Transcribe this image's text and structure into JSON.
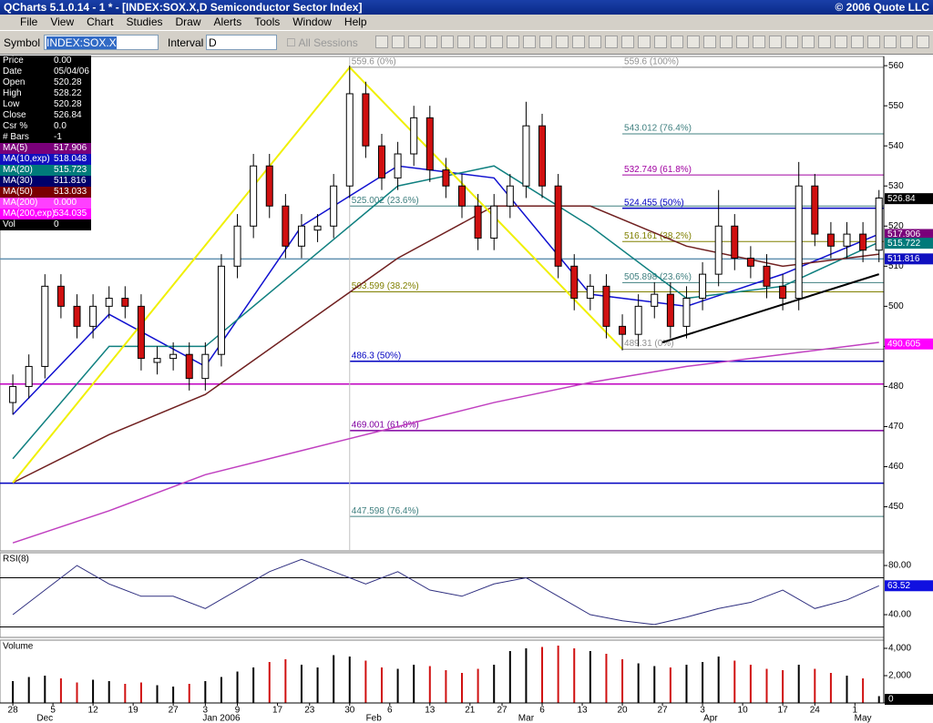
{
  "window": {
    "title": "QCharts 5.1.0.14 - 1 * - [INDEX:SOX.X,D Semiconductor Sector Index]",
    "copyright": "© 2006 Quote LLC"
  },
  "menu": [
    "File",
    "View",
    "Chart",
    "Studies",
    "Draw",
    "Alerts",
    "Tools",
    "Window",
    "Help"
  ],
  "toolbar": {
    "symbol_label": "Symbol",
    "symbol": "INDEX:SOX.X",
    "interval_label": "Interval",
    "interval": "D",
    "sessions": "All Sessions"
  },
  "info_panel": [
    {
      "label": "Price",
      "value": "0.00",
      "bg": "#000000"
    },
    {
      "label": "Date",
      "value": "05/04/06",
      "bg": "#000000"
    },
    {
      "label": "Open",
      "value": "520.28",
      "bg": "#000000"
    },
    {
      "label": "High",
      "value": "528.22",
      "bg": "#000000"
    },
    {
      "label": "Low",
      "value": "520.28",
      "bg": "#000000"
    },
    {
      "label": "Close",
      "value": "526.84",
      "bg": "#000000"
    },
    {
      "label": "Csr %",
      "value": "0.0",
      "bg": "#000000"
    },
    {
      "label": "# Bars",
      "value": "-1",
      "bg": "#000000"
    },
    {
      "label": "MA(5)",
      "value": "517.906",
      "bg": "#7a007a"
    },
    {
      "label": "MA(10,exp)",
      "value": "518.048",
      "bg": "#1010c0"
    },
    {
      "label": "MA(20)",
      "value": "515.723",
      "bg": "#007a7a"
    },
    {
      "label": "MA(30)",
      "value": "511.816",
      "bg": "#00006a"
    },
    {
      "label": "MA(50)",
      "value": "513.033",
      "bg": "#7a0000"
    },
    {
      "label": "MA(200)",
      "value": "0.000",
      "bg": "#ff40ff"
    },
    {
      "label": "MA(200,exp)",
      "value": "534.035",
      "bg": "#ff00ff"
    },
    {
      "label": "Vol",
      "value": "0",
      "bg": "#000000"
    }
  ],
  "chart": {
    "type": "candlestick",
    "xlim": [
      -1.6,
      108.6
    ],
    "ylim": [
      439,
      562.3
    ],
    "yticks": [
      450,
      460,
      470,
      480,
      490,
      500,
      510,
      520,
      530,
      540,
      550,
      560
    ],
    "xticks": [
      {
        "value": 0,
        "label": "28"
      },
      {
        "value": 5,
        "label": "5"
      },
      {
        "value": 10,
        "label": "12"
      },
      {
        "value": 15,
        "label": "19"
      },
      {
        "value": 20,
        "label": "27"
      },
      {
        "value": 24,
        "label": "3"
      },
      {
        "value": 28,
        "label": "9"
      },
      {
        "value": 33,
        "label": "17"
      },
      {
        "value": 37,
        "label": "23"
      },
      {
        "value": 42,
        "label": "30"
      },
      {
        "value": 47,
        "label": "6"
      },
      {
        "value": 52,
        "label": "13"
      },
      {
        "value": 57,
        "label": "21"
      },
      {
        "value": 61,
        "label": "27"
      },
      {
        "value": 66,
        "label": "6"
      },
      {
        "value": 71,
        "label": "13"
      },
      {
        "value": 76,
        "label": "20"
      },
      {
        "value": 81,
        "label": "27"
      },
      {
        "value": 86,
        "label": "3"
      },
      {
        "value": 91,
        "label": "10"
      },
      {
        "value": 96,
        "label": "17"
      },
      {
        "value": 100,
        "label": "24"
      },
      {
        "value": 105,
        "label": "1"
      }
    ],
    "months": [
      {
        "value": 4,
        "label": "Dec"
      },
      {
        "value": 26,
        "label": "Jan 2006"
      },
      {
        "value": 45,
        "label": "Feb"
      },
      {
        "value": 64,
        "label": "Mar"
      },
      {
        "value": 87,
        "label": "Apr"
      },
      {
        "value": 106,
        "label": "May"
      }
    ],
    "up_color": "#ffffff",
    "down_color": "#d01010",
    "candle_days": [
      0,
      2,
      4,
      6,
      8,
      10,
      12,
      14,
      16,
      18,
      20,
      22,
      24,
      26,
      28,
      30,
      32,
      34,
      36,
      38,
      40,
      42,
      44,
      46,
      48,
      50,
      52,
      54,
      56,
      58,
      60,
      62,
      64,
      66,
      68,
      70,
      72,
      74,
      76,
      78,
      80,
      82,
      84,
      86,
      88,
      90,
      92,
      94,
      96,
      98,
      100,
      102,
      104,
      106,
      108
    ],
    "candles": [
      [
        476,
        483,
        473,
        480
      ],
      [
        480,
        488,
        477,
        485
      ],
      [
        485,
        508,
        482,
        505
      ],
      [
        505,
        508,
        497,
        500
      ],
      [
        500,
        503,
        492,
        495
      ],
      [
        495,
        503,
        492,
        500
      ],
      [
        500,
        505,
        497,
        502
      ],
      [
        502,
        505,
        497,
        500
      ],
      [
        500,
        503,
        484,
        487
      ],
      [
        486,
        490,
        483,
        487
      ],
      [
        487,
        491,
        484,
        488
      ],
      [
        488,
        491,
        479,
        482
      ],
      [
        482,
        491,
        479,
        488
      ],
      [
        488,
        513,
        485,
        510
      ],
      [
        510,
        523,
        507,
        520
      ],
      [
        520,
        538,
        517,
        535
      ],
      [
        535,
        538,
        522,
        525
      ],
      [
        525,
        528,
        512,
        515
      ],
      [
        515,
        523,
        512,
        520
      ],
      [
        519,
        523,
        516,
        520
      ],
      [
        520,
        533,
        517,
        530
      ],
      [
        530,
        560,
        527,
        553
      ],
      [
        553,
        556,
        537,
        540
      ],
      [
        540,
        543,
        529,
        532
      ],
      [
        532,
        541,
        529,
        538
      ],
      [
        538,
        550,
        535,
        547
      ],
      [
        547,
        550,
        531,
        534
      ],
      [
        534,
        537,
        527,
        530
      ],
      [
        530,
        533,
        522,
        525
      ],
      [
        525,
        528,
        514,
        517
      ],
      [
        517,
        528,
        514,
        525
      ],
      [
        525,
        533,
        522,
        530
      ],
      [
        530,
        551,
        527,
        545
      ],
      [
        545,
        548,
        527,
        530
      ],
      [
        530,
        533,
        507,
        510
      ],
      [
        510,
        513,
        499,
        502
      ],
      [
        502,
        508,
        499,
        505
      ],
      [
        505,
        508,
        492,
        495
      ],
      [
        495,
        498,
        489,
        493
      ],
      [
        493,
        503,
        490,
        500
      ],
      [
        500,
        506,
        497,
        503
      ],
      [
        503,
        506,
        492,
        495
      ],
      [
        495,
        505,
        492,
        502
      ],
      [
        502,
        511,
        499,
        508
      ],
      [
        508,
        529,
        505,
        520
      ],
      [
        520,
        523,
        509,
        512
      ],
      [
        512,
        515,
        507,
        510
      ],
      [
        510,
        513,
        502,
        505
      ],
      [
        505,
        508,
        499,
        502
      ],
      [
        502,
        536,
        499,
        530
      ],
      [
        530,
        533,
        515,
        518
      ],
      [
        518,
        521,
        512,
        515
      ],
      [
        515,
        521,
        512,
        518
      ],
      [
        518,
        521,
        511,
        514
      ],
      [
        514,
        529,
        511,
        527
      ]
    ],
    "ma_days": [
      0,
      12,
      24,
      36,
      48,
      60,
      72,
      84,
      96,
      108
    ],
    "ma": [
      {
        "color": "#1010d0",
        "values": [
          473,
          498,
          485,
          520,
          535,
          532,
          503,
          500,
          508,
          518
        ]
      },
      {
        "color": "#108080",
        "values": [
          462,
          490,
          490,
          510,
          530,
          535,
          520,
          502,
          505,
          516
        ]
      },
      {
        "color": "#702020",
        "values": [
          456,
          468,
          478,
          495,
          512,
          525,
          525,
          515,
          510,
          513
        ]
      },
      {
        "color": "#c040c0",
        "values": [
          441,
          449,
          458,
          464,
          470,
          476,
          481,
          485,
          488,
          491
        ]
      }
    ],
    "fib_left": [
      {
        "value": 559.6,
        "label": "559.6 (0%)",
        "color": "#909090"
      },
      {
        "value": 525.002,
        "label": "525.002 (23.6%)",
        "color": "#408080"
      },
      {
        "value": 503.599,
        "label": "503.599 (38.2%)",
        "color": "#808000"
      },
      {
        "value": 486.3,
        "label": "486.3 (50%)",
        "color": "#0000c0"
      },
      {
        "value": 469.001,
        "label": "469.001 (61.8%)",
        "color": "#8000a0"
      },
      {
        "value": 447.598,
        "label": "447.598 (76.4%)",
        "color": "#408080"
      }
    ],
    "fib_right": [
      {
        "value": 559.6,
        "label": "559.6 (100%)",
        "color": "#909090"
      },
      {
        "value": 543.012,
        "label": "543.012 (76.4%)",
        "color": "#408080"
      },
      {
        "value": 532.749,
        "label": "532.749 (61.8%)",
        "color": "#a000a0"
      },
      {
        "value": 524.455,
        "label": "524.455 (50%)",
        "color": "#0000c0"
      },
      {
        "value": 516.161,
        "label": "516.161 (38.2%)",
        "color": "#808000"
      },
      {
        "value": 505.898,
        "label": "505.898 (23.6%)",
        "color": "#408080"
      },
      {
        "value": 489.31,
        "label": "489.31 (0%)",
        "color": "#909090"
      }
    ],
    "plain_lines": [
      {
        "value": 480.6,
        "color": "#c000c0"
      },
      {
        "value": 455.9,
        "color": "#0000c0"
      },
      {
        "value": 511.8,
        "color": "#6090b0"
      }
    ],
    "zigzag": {
      "color": "#f0f000",
      "x": [
        0,
        42,
        76
      ],
      "y": [
        456,
        559.6,
        489.31
      ]
    },
    "trendline": {
      "color": "#000000",
      "x": [
        81,
        108
      ],
      "y": [
        491,
        508
      ]
    },
    "price_labels": [
      {
        "value": 526.84,
        "color": "#000000"
      },
      {
        "value": 517.906,
        "color": "#7a007a"
      },
      {
        "value": 515.722,
        "color": "#007a7a"
      },
      {
        "value": 511.816,
        "color": "#1010c0"
      },
      {
        "value": 490.605,
        "color": "#ff00ff"
      }
    ],
    "rsi": {
      "title": "RSI(8)",
      "color": "#303080",
      "ylim": [
        21.5,
        90.4
      ],
      "yticks": [
        {
          "value": 80,
          "label": "80.00"
        },
        {
          "value": 40,
          "label": "40.00"
        }
      ],
      "ref_lines": [
        70,
        30
      ],
      "label_color": "#1010e0",
      "days": [
        0,
        4,
        8,
        12,
        16,
        20,
        24,
        28,
        32,
        36,
        40,
        44,
        48,
        52,
        56,
        60,
        64,
        68,
        72,
        76,
        80,
        84,
        88,
        92,
        96,
        100,
        104,
        108
      ],
      "values": [
        40,
        60,
        80,
        65,
        55,
        55,
        45,
        60,
        75,
        85,
        75,
        65,
        75,
        60,
        55,
        65,
        70,
        55,
        40,
        35,
        32,
        38,
        45,
        50,
        60,
        45,
        52,
        63.52
      ]
    },
    "volume": {
      "title": "Volume",
      "ylim": [
        0,
        4600
      ],
      "yticks": [
        {
          "value": 4000,
          "label": "4,000"
        },
        {
          "value": 2000,
          "label": "2,000"
        },
        0
      ],
      "values": [
        1600,
        1900,
        2000,
        1800,
        1500,
        1700,
        1600,
        1400,
        1500,
        1300,
        1200,
        1400,
        1600,
        1900,
        2300,
        2600,
        3000,
        3200,
        2800,
        2600,
        3500,
        3400,
        3100,
        2600,
        2500,
        2800,
        2700,
        2400,
        2200,
        2500,
        2800,
        3800,
        4000,
        4100,
        4200,
        4000,
        3800,
        3600,
        3200,
        2900,
        2700,
        2600,
        2800,
        3000,
        3400,
        3100,
        2800,
        2500,
        2400,
        2800,
        2500,
        2200,
        2000,
        1800,
        500
      ]
    }
  }
}
